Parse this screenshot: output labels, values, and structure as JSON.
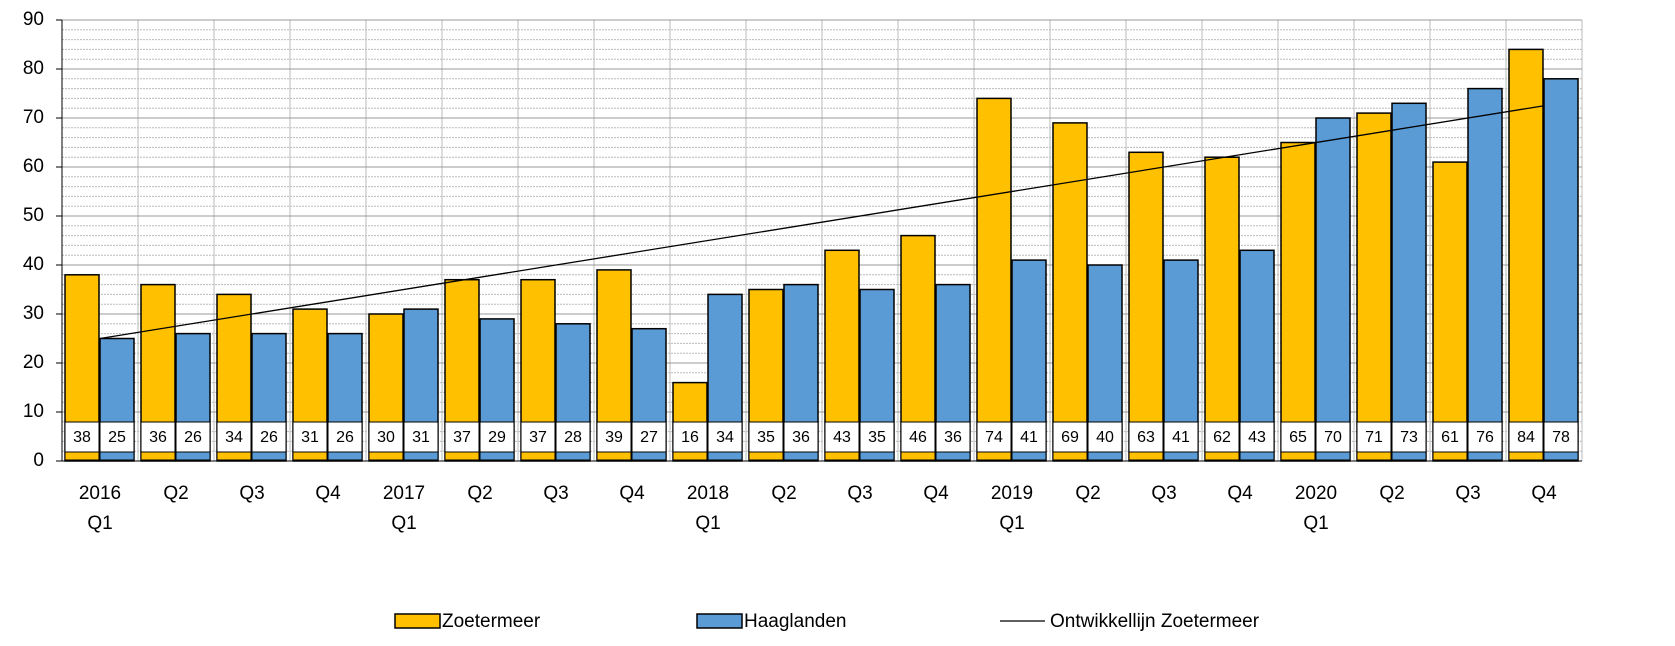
{
  "chart_data": {
    "type": "bar",
    "categories": [
      [
        "2016",
        "Q1"
      ],
      [
        "Q2"
      ],
      [
        "Q3"
      ],
      [
        "Q4"
      ],
      [
        "2017",
        "Q1"
      ],
      [
        "Q2"
      ],
      [
        "Q3"
      ],
      [
        "Q4"
      ],
      [
        "2018",
        "Q1"
      ],
      [
        "Q2"
      ],
      [
        "Q3"
      ],
      [
        "Q4"
      ],
      [
        "2019",
        "Q1"
      ],
      [
        "Q2"
      ],
      [
        "Q3"
      ],
      [
        "Q4"
      ],
      [
        "2020",
        "Q1"
      ],
      [
        "Q2"
      ],
      [
        "Q3"
      ],
      [
        "Q4"
      ]
    ],
    "series": [
      {
        "name": "Zoetermeer",
        "color": "#ffc000",
        "values": [
          38,
          36,
          34,
          31,
          30,
          37,
          37,
          39,
          16,
          35,
          43,
          46,
          74,
          69,
          63,
          62,
          65,
          71,
          61,
          84
        ]
      },
      {
        "name": "Haaglanden",
        "color": "#5b9bd5",
        "values": [
          25,
          26,
          26,
          26,
          31,
          29,
          28,
          27,
          34,
          36,
          35,
          36,
          41,
          40,
          41,
          43,
          70,
          73,
          76,
          78
        ]
      }
    ],
    "trendline": {
      "name": "Ontwikkellijn Zoetermeer",
      "color": "#000000",
      "values": [
        25,
        72.5
      ]
    },
    "ylim": [
      0,
      90
    ],
    "yticks": [
      0,
      10,
      20,
      30,
      40,
      50,
      60,
      70,
      80,
      90
    ],
    "grid": true,
    "minor_grid": true,
    "data_table": true,
    "legend": "bottom"
  }
}
